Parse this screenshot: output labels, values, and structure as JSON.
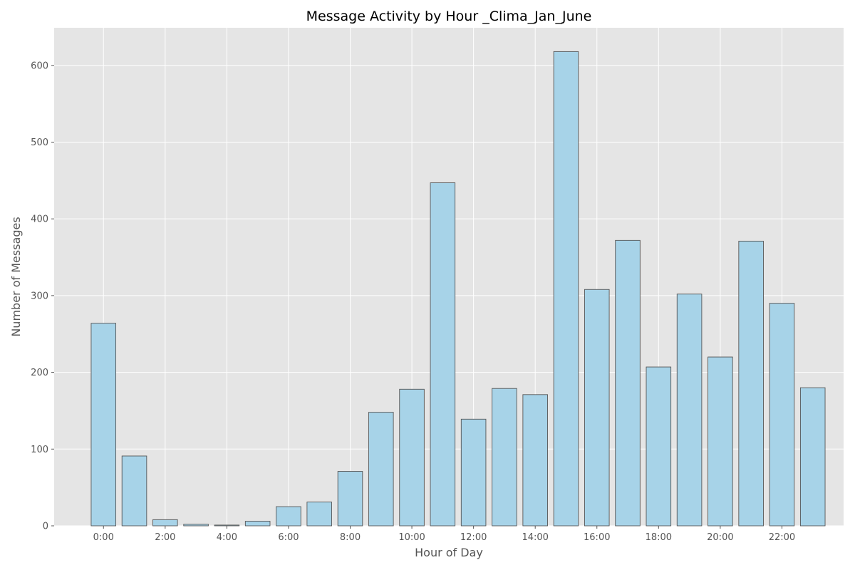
{
  "chart_data": {
    "type": "bar",
    "title": "Message Activity by Hour _Clima_Jan_June",
    "xlabel": "Hour of Day",
    "ylabel": "Number of Messages",
    "categories": [
      "0",
      "1",
      "2",
      "3",
      "4",
      "5",
      "6",
      "7",
      "8",
      "9",
      "10",
      "11",
      "12",
      "13",
      "14",
      "15",
      "16",
      "17",
      "18",
      "19",
      "20",
      "21",
      "22",
      "23"
    ],
    "x_tick_labels": [
      "0:00",
      "2:00",
      "4:00",
      "6:00",
      "8:00",
      "10:00",
      "12:00",
      "14:00",
      "16:00",
      "18:00",
      "20:00",
      "22:00"
    ],
    "x_tick_hours": [
      0,
      2,
      4,
      6,
      8,
      10,
      12,
      14,
      16,
      18,
      20,
      22
    ],
    "values": [
      264,
      91,
      8,
      2,
      1,
      6,
      25,
      31,
      71,
      148,
      178,
      447,
      139,
      179,
      171,
      618,
      308,
      372,
      207,
      302,
      220,
      371,
      290,
      180
    ],
    "y_ticks": [
      0,
      100,
      200,
      300,
      400,
      500,
      600
    ],
    "ylim": [
      0,
      649
    ],
    "xlim": [
      -1.6,
      24.0
    ],
    "grid": true,
    "colors": {
      "bar_fill": "#a7d3e8",
      "bar_edge": "#555555",
      "plot_background": "#e5e5e5",
      "grid": "#ffffff",
      "text": "#555555"
    }
  }
}
